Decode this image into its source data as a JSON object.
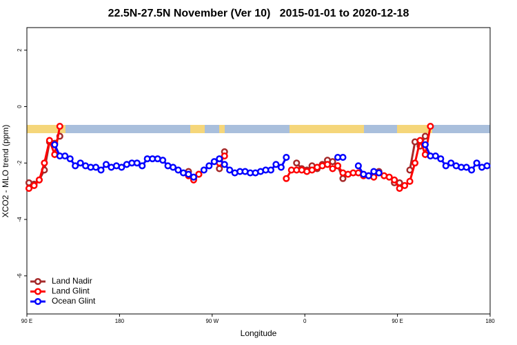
{
  "chart_data": {
    "type": "line",
    "title": "22.5N-27.5N November (Ver 10)   2015-01-01 to 2020-12-18",
    "xlabel": "Longitude",
    "ylabel": "XCO2 - MLO trend (ppm)",
    "xlim": [
      90,
      540
    ],
    "ylim": [
      -7.35,
      2.8
    ],
    "xticks": [
      {
        "value": 90,
        "label": "90 E"
      },
      {
        "value": 180,
        "label": "180"
      },
      {
        "value": 270,
        "label": "90 W"
      },
      {
        "value": 360,
        "label": "0"
      },
      {
        "value": 450,
        "label": "90 E"
      },
      {
        "value": 540,
        "label": "180"
      }
    ],
    "yticks": [
      2,
      0,
      -2,
      -4,
      -6
    ],
    "grid": false,
    "legend": "bottom-left",
    "x": [
      92,
      97,
      102,
      107,
      112,
      117,
      122,
      127,
      132,
      137,
      142,
      147,
      152,
      157,
      162,
      167,
      172,
      177,
      182,
      187,
      192,
      197,
      202,
      207,
      212,
      217,
      222,
      227,
      232,
      237,
      242,
      247,
      252,
      257,
      262,
      267,
      272,
      277,
      282,
      287,
      292,
      297,
      302,
      307,
      312,
      317,
      322,
      327,
      332,
      337,
      342,
      347,
      352,
      357,
      362,
      367,
      372,
      377,
      382,
      387,
      392,
      397,
      402,
      407,
      412,
      417,
      422,
      427,
      432,
      437,
      442,
      447,
      452,
      457,
      462,
      467,
      472,
      477,
      482,
      487,
      492,
      497,
      502,
      507,
      512,
      517,
      522,
      527,
      532,
      537
    ],
    "series": [
      {
        "name": "Land Nadir",
        "color": "#a52a2a",
        "values": [
          -2.7,
          -2.75,
          -2.6,
          -2.25,
          -1.25,
          -1.3,
          -1.05,
          null,
          null,
          null,
          null,
          null,
          null,
          null,
          null,
          null,
          null,
          null,
          null,
          null,
          null,
          null,
          null,
          null,
          null,
          null,
          null,
          null,
          null,
          null,
          null,
          -2.3,
          -2.55,
          -2.4,
          null,
          null,
          null,
          -2.2,
          -1.6,
          null,
          null,
          null,
          null,
          null,
          null,
          null,
          null,
          null,
          null,
          null,
          null,
          null,
          -2.0,
          -2.2,
          -2.25,
          -2.1,
          -2.2,
          -2.05,
          -1.9,
          -1.95,
          -2.1,
          -2.55,
          null,
          null,
          null,
          null,
          null,
          null,
          -2.3,
          null,
          null,
          -2.7,
          -2.7,
          null,
          -2.25,
          -1.25,
          -1.4,
          -1.05,
          null,
          null,
          null,
          null,
          null,
          null,
          null,
          null,
          null,
          null,
          null,
          null
        ]
      },
      {
        "name": "Land Glint",
        "color": "#ff0000",
        "values": [
          -2.9,
          -2.8,
          -2.6,
          -2.0,
          -1.2,
          -1.7,
          -0.7,
          null,
          null,
          null,
          null,
          null,
          null,
          null,
          null,
          null,
          null,
          null,
          null,
          null,
          null,
          null,
          null,
          null,
          null,
          null,
          null,
          null,
          null,
          null,
          null,
          -2.45,
          -2.6,
          -2.4,
          null,
          null,
          null,
          -2.0,
          -1.75,
          null,
          null,
          null,
          null,
          null,
          null,
          null,
          null,
          null,
          null,
          null,
          -2.55,
          -2.25,
          -2.25,
          -2.25,
          -2.3,
          -2.25,
          -2.15,
          -2.1,
          -2.05,
          -2.2,
          -2.1,
          -2.35,
          -2.4,
          -2.35,
          -2.35,
          -2.45,
          -2.45,
          -2.5,
          -2.35,
          -2.45,
          -2.5,
          -2.6,
          -2.9,
          -2.8,
          -2.65,
          -2.0,
          -1.2,
          -1.7,
          -0.7,
          null,
          null,
          null,
          null,
          null,
          null,
          null,
          null,
          null,
          null,
          null
        ]
      },
      {
        "name": "Ocean Glint",
        "color": "#0000ff",
        "values": [
          null,
          null,
          null,
          null,
          null,
          -1.35,
          -1.75,
          -1.75,
          -1.85,
          -2.1,
          -2.0,
          -2.1,
          -2.15,
          -2.15,
          -2.25,
          -2.05,
          -2.15,
          -2.1,
          -2.15,
          -2.05,
          -2.0,
          -2.0,
          -2.1,
          -1.85,
          -1.85,
          -1.85,
          -1.9,
          -2.1,
          -2.15,
          -2.25,
          -2.35,
          -2.4,
          -2.5,
          null,
          -2.25,
          -2.1,
          -1.95,
          -1.85,
          -2.05,
          -2.25,
          -2.35,
          -2.3,
          -2.3,
          -2.35,
          -2.35,
          -2.3,
          -2.25,
          -2.25,
          -2.05,
          -2.15,
          -1.8,
          null,
          null,
          null,
          null,
          null,
          null,
          null,
          null,
          null,
          -1.8,
          -1.8,
          null,
          null,
          -2.1,
          -2.4,
          -2.45,
          -2.3,
          -2.35,
          null,
          null,
          null,
          null,
          null,
          null,
          null,
          null,
          -1.35,
          -1.75,
          -1.75,
          -1.85,
          -2.1,
          -2.0,
          -2.1,
          -2.15,
          -2.15,
          -2.25,
          -2.0,
          -2.15,
          -2.1
        ]
      }
    ]
  }
}
